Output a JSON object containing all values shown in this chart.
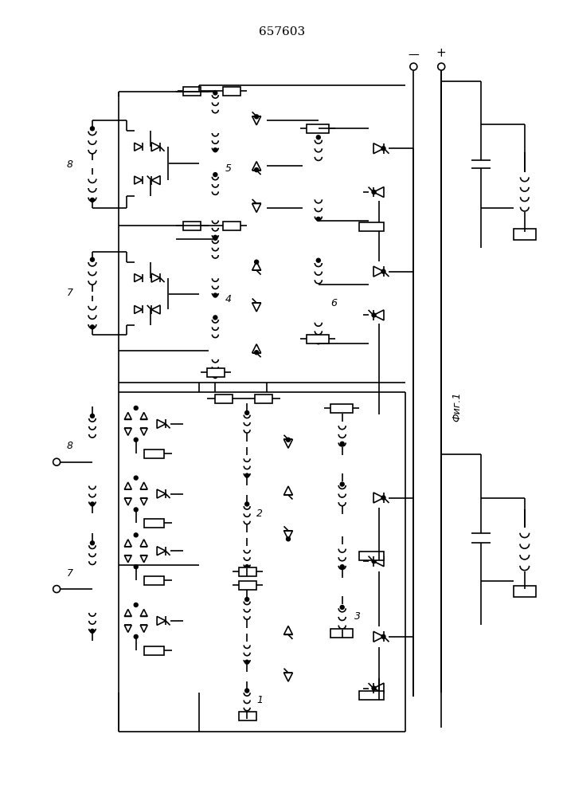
{
  "title": "657603",
  "bg": "#ffffff",
  "lc": "#000000",
  "lw": 1.2,
  "fig_w": 7.07,
  "fig_h": 10.0
}
